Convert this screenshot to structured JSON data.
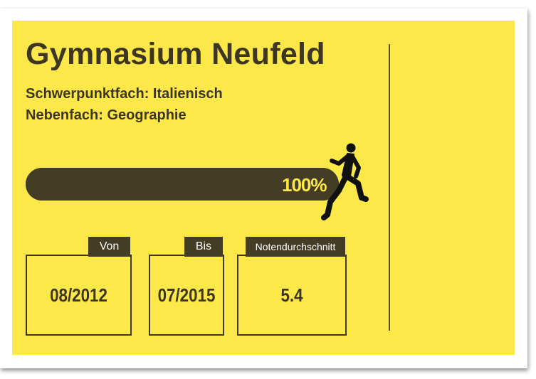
{
  "school": {
    "name": "Gymnasium Neufeld",
    "major": "Schwerpunktfach: Italienisch",
    "minor": "Nebenfach: Geographie"
  },
  "progress": {
    "value": 1.0,
    "label": "100%"
  },
  "runner_icon": "running-person-icon",
  "fields": [
    {
      "label": "Von",
      "value": "08/2012"
    },
    {
      "label": "Bis",
      "value": "07/2015"
    },
    {
      "label": "Notendurchschnitt",
      "value": "5.4"
    }
  ],
  "colors": {
    "background": "#fde84a",
    "dark": "#433d26",
    "text": "#3d3622"
  }
}
